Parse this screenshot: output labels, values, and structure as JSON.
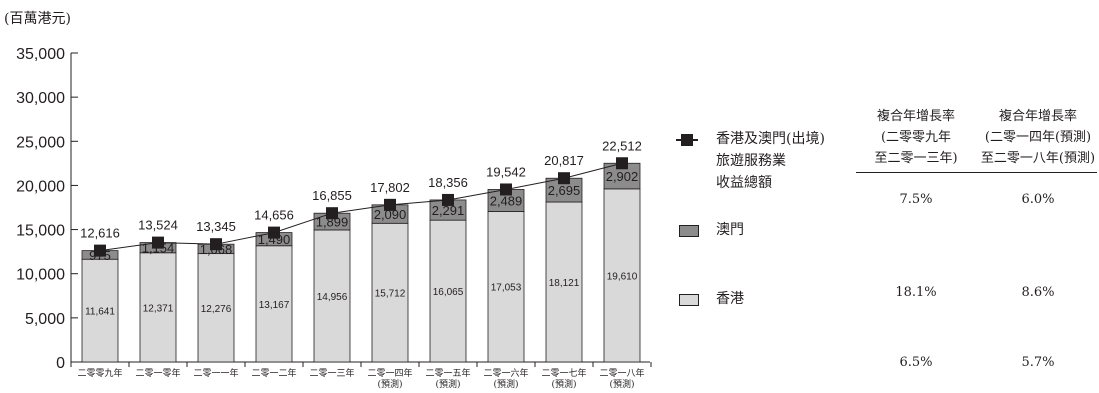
{
  "unit_label": "(百萬港元)",
  "chart_data": {
    "type": "bar",
    "stacked": true,
    "categories": [
      [
        "二零零九年"
      ],
      [
        "二零一零年"
      ],
      [
        "二零一一年"
      ],
      [
        "二零一二年"
      ],
      [
        "二零一三年"
      ],
      [
        "二零一四年",
        "(預測)"
      ],
      [
        "二零一五年",
        "(預測)"
      ],
      [
        "二零一六年",
        "(預測)"
      ],
      [
        "二零一七年",
        "(預測)"
      ],
      [
        "二零一八年",
        "(預測)"
      ]
    ],
    "ylim": [
      0,
      35000
    ],
    "yticks": [
      "0",
      "5,000",
      "10,000",
      "15,000",
      "20,000",
      "25,000",
      "30,000",
      "35,000"
    ],
    "series": [
      {
        "name": "香港",
        "color": "#d9d9d9",
        "values": [
          11641,
          12371,
          12276,
          13167,
          14956,
          15712,
          16065,
          17053,
          18121,
          19610
        ],
        "labels": [
          "11,641",
          "12,371",
          "12,276",
          "13,167",
          "14,956",
          "15,712",
          "16,065",
          "17,053",
          "18,121",
          "19,610"
        ]
      },
      {
        "name": "澳門",
        "color": "#8c8c8c",
        "values": [
          975,
          1154,
          1068,
          1490,
          1899,
          2090,
          2291,
          2489,
          2695,
          2902
        ],
        "labels": [
          "975",
          "1,154",
          "1,068",
          "1,490",
          "1,899",
          "2,090",
          "2,291",
          "2,489",
          "2,695",
          "2,902"
        ]
      }
    ],
    "total_line": {
      "name": "香港及澳門(出境)旅遊服務業收益總額",
      "values": [
        12616,
        13524,
        13345,
        14656,
        16855,
        17802,
        18356,
        19542,
        20817,
        22512
      ],
      "labels": [
        "12,616",
        "13,524",
        "13,345",
        "14,656",
        "16,855",
        "17,802",
        "18,356",
        "19,542",
        "20,817",
        "22,512"
      ]
    }
  },
  "legend": {
    "total": [
      "香港及澳門(出境)",
      "旅遊服務業",
      "收益總額"
    ],
    "macau": "澳門",
    "hk": "香港"
  },
  "cagr_table": {
    "headers": [
      [
        "複合年增長率",
        "(二零零九年",
        "至二零一三年)"
      ],
      [
        "複合年增長率",
        "(二零一四年(預測)",
        "至二零一八年(預測)"
      ]
    ],
    "rows": [
      [
        "7.5%",
        "6.0%"
      ],
      [
        "18.1%",
        "8.6%"
      ],
      [
        "6.5%",
        "5.7%"
      ]
    ]
  }
}
